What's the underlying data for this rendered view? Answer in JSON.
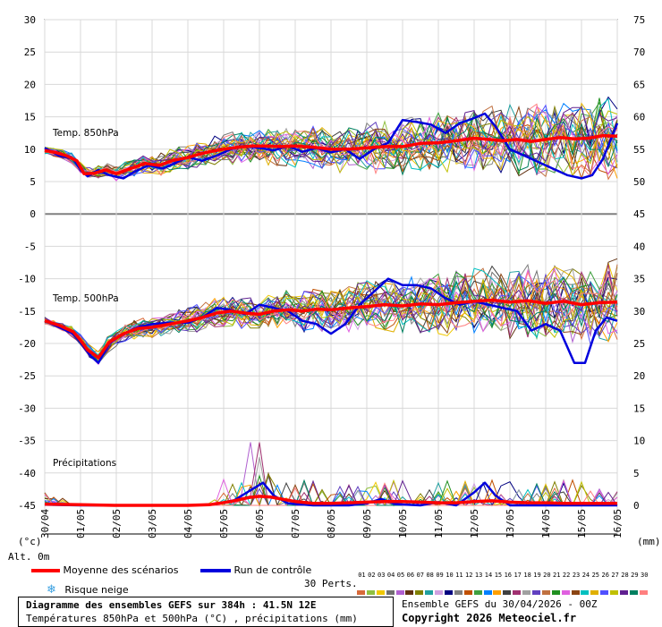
{
  "chart_data": {
    "type": "line",
    "x_labels": [
      "30/04",
      "01/05",
      "02/05",
      "03/05",
      "04/05",
      "05/05",
      "06/05",
      "07/05",
      "08/05",
      "09/05",
      "10/05",
      "11/05",
      "12/05",
      "13/05",
      "14/05",
      "15/05",
      "16/05"
    ],
    "x_range_days": [
      0,
      16
    ],
    "y_left_ticks": [
      30,
      25,
      20,
      15,
      10,
      5,
      0,
      -5,
      -10,
      -15,
      -20,
      -25,
      -30,
      -35,
      -40,
      -45
    ],
    "y_right_ticks": [
      75,
      70,
      65,
      60,
      55,
      50,
      45,
      40,
      35,
      30,
      25,
      20,
      15,
      10,
      5,
      0
    ],
    "panels": {
      "t850": {
        "label": "Temp. 850hPa",
        "ylim": [
          0,
          30
        ],
        "mean": [
          [
            0,
            9.8
          ],
          [
            0.3,
            9.5
          ],
          [
            0.6,
            9.0
          ],
          [
            0.9,
            8.2
          ],
          [
            1.1,
            6.2
          ],
          [
            1.4,
            6.3
          ],
          [
            1.7,
            6.8
          ],
          [
            2.0,
            6.2
          ],
          [
            2.4,
            7.0
          ],
          [
            2.8,
            7.8
          ],
          [
            3.2,
            7.5
          ],
          [
            3.6,
            8.3
          ],
          [
            4.0,
            8.7
          ],
          [
            4.3,
            9.2
          ],
          [
            4.6,
            9.6
          ],
          [
            5.0,
            10.0
          ],
          [
            5.4,
            10.3
          ],
          [
            5.8,
            10.5
          ],
          [
            6.2,
            10.5
          ],
          [
            6.6,
            10.4
          ],
          [
            7.0,
            10.5
          ],
          [
            7.5,
            10.3
          ],
          [
            8.0,
            10.0
          ],
          [
            8.5,
            10.0
          ],
          [
            9.0,
            10.2
          ],
          [
            9.5,
            10.4
          ],
          [
            10.0,
            10.4
          ],
          [
            10.5,
            10.9
          ],
          [
            11.0,
            11.0
          ],
          [
            11.5,
            11.3
          ],
          [
            12.0,
            11.7
          ],
          [
            12.4,
            11.5
          ],
          [
            12.8,
            11.3
          ],
          [
            13.2,
            11.5
          ],
          [
            13.6,
            11.2
          ],
          [
            14.0,
            11.5
          ],
          [
            14.4,
            11.8
          ],
          [
            14.8,
            11.6
          ],
          [
            15.2,
            11.7
          ],
          [
            15.6,
            12.1
          ],
          [
            16.0,
            12.0
          ]
        ],
        "control": [
          [
            0,
            10.2
          ],
          [
            0.4,
            9.0
          ],
          [
            0.8,
            8.5
          ],
          [
            1.0,
            6.8
          ],
          [
            1.2,
            5.8
          ],
          [
            1.5,
            6.8
          ],
          [
            1.8,
            6.0
          ],
          [
            2.2,
            5.5
          ],
          [
            2.5,
            6.5
          ],
          [
            2.9,
            7.5
          ],
          [
            3.3,
            7.0
          ],
          [
            3.7,
            8.0
          ],
          [
            4.0,
            8.8
          ],
          [
            4.4,
            8.2
          ],
          [
            4.8,
            9.0
          ],
          [
            5.2,
            10.0
          ],
          [
            5.6,
            10.5
          ],
          [
            6.0,
            10.2
          ],
          [
            6.4,
            9.8
          ],
          [
            6.8,
            10.5
          ],
          [
            7.2,
            9.6
          ],
          [
            7.6,
            10.2
          ],
          [
            8.0,
            9.5
          ],
          [
            8.4,
            10.0
          ],
          [
            8.8,
            8.5
          ],
          [
            9.2,
            10.0
          ],
          [
            9.6,
            11.0
          ],
          [
            10.0,
            14.5
          ],
          [
            10.4,
            14.2
          ],
          [
            10.8,
            13.8
          ],
          [
            11.2,
            12.5
          ],
          [
            11.6,
            14.0
          ],
          [
            12.0,
            14.8
          ],
          [
            12.3,
            15.5
          ],
          [
            12.6,
            13.5
          ],
          [
            13.0,
            10.0
          ],
          [
            13.4,
            9.0
          ],
          [
            13.8,
            8.0
          ],
          [
            14.2,
            7.0
          ],
          [
            14.6,
            6.0
          ],
          [
            15.0,
            5.5
          ],
          [
            15.3,
            6.0
          ],
          [
            15.6,
            8.5
          ],
          [
            16.0,
            14.0
          ]
        ]
      },
      "t500": {
        "label": "Temp. 500hPa",
        "ylim": [
          -25,
          -5
        ],
        "mean": [
          [
            0,
            -16.5
          ],
          [
            0.4,
            -17.2
          ],
          [
            0.8,
            -18.2
          ],
          [
            1.0,
            -19.5
          ],
          [
            1.2,
            -21.0
          ],
          [
            1.5,
            -22.2
          ],
          [
            1.8,
            -19.8
          ],
          [
            2.2,
            -18.5
          ],
          [
            2.6,
            -17.7
          ],
          [
            3.0,
            -17.5
          ],
          [
            3.5,
            -17.0
          ],
          [
            4.0,
            -16.5
          ],
          [
            4.4,
            -16.0
          ],
          [
            4.8,
            -15.3
          ],
          [
            5.2,
            -15.0
          ],
          [
            5.6,
            -15.3
          ],
          [
            6.0,
            -15.5
          ],
          [
            6.4,
            -15.0
          ],
          [
            6.8,
            -14.8
          ],
          [
            7.2,
            -15.0
          ],
          [
            7.6,
            -14.7
          ],
          [
            8.0,
            -14.8
          ],
          [
            8.5,
            -14.5
          ],
          [
            9.0,
            -14.3
          ],
          [
            9.5,
            -14.0
          ],
          [
            10.0,
            -14.2
          ],
          [
            10.5,
            -13.9
          ],
          [
            11.0,
            -14.0
          ],
          [
            11.5,
            -13.7
          ],
          [
            12.0,
            -13.5
          ],
          [
            12.5,
            -13.3
          ],
          [
            13.0,
            -13.6
          ],
          [
            13.5,
            -13.4
          ],
          [
            14.0,
            -13.8
          ],
          [
            14.5,
            -13.5
          ],
          [
            15.0,
            -14.0
          ],
          [
            15.5,
            -13.7
          ],
          [
            16.0,
            -13.6
          ]
        ],
        "control": [
          [
            0,
            -16.5
          ],
          [
            0.4,
            -17.5
          ],
          [
            0.8,
            -18.5
          ],
          [
            1.0,
            -19.8
          ],
          [
            1.3,
            -22.0
          ],
          [
            1.5,
            -23.0
          ],
          [
            1.8,
            -20.0
          ],
          [
            2.2,
            -18.5
          ],
          [
            2.6,
            -17.5
          ],
          [
            3.0,
            -17.0
          ],
          [
            3.5,
            -16.8
          ],
          [
            4.0,
            -16.8
          ],
          [
            4.4,
            -16.0
          ],
          [
            4.8,
            -14.5
          ],
          [
            5.2,
            -14.8
          ],
          [
            5.6,
            -15.5
          ],
          [
            6.0,
            -14.0
          ],
          [
            6.4,
            -14.5
          ],
          [
            6.8,
            -15.0
          ],
          [
            7.2,
            -16.5
          ],
          [
            7.6,
            -17.0
          ],
          [
            8.0,
            -18.5
          ],
          [
            8.4,
            -17.0
          ],
          [
            8.8,
            -14.0
          ],
          [
            9.2,
            -12.0
          ],
          [
            9.6,
            -10.0
          ],
          [
            10.0,
            -11.0
          ],
          [
            10.4,
            -11.0
          ],
          [
            10.8,
            -11.5
          ],
          [
            11.2,
            -13.0
          ],
          [
            11.6,
            -14.0
          ],
          [
            12.0,
            -13.5
          ],
          [
            12.4,
            -14.0
          ],
          [
            12.8,
            -14.5
          ],
          [
            13.2,
            -15.0
          ],
          [
            13.6,
            -18.0
          ],
          [
            14.0,
            -17.0
          ],
          [
            14.4,
            -18.0
          ],
          [
            14.8,
            -23.0
          ],
          [
            15.1,
            -23.0
          ],
          [
            15.4,
            -18.0
          ],
          [
            15.7,
            -16.0
          ],
          [
            16.0,
            -16.5
          ]
        ]
      },
      "precip": {
        "label": "Précipitations",
        "ylim": [
          0,
          15
        ],
        "mean": [
          [
            0,
            0.2
          ],
          [
            1,
            0.1
          ],
          [
            2,
            0
          ],
          [
            3,
            0
          ],
          [
            4,
            0
          ],
          [
            4.6,
            0.1
          ],
          [
            5.2,
            0.6
          ],
          [
            5.7,
            1.2
          ],
          [
            6.0,
            1.4
          ],
          [
            6.3,
            1.3
          ],
          [
            6.6,
            1.0
          ],
          [
            7.0,
            0.6
          ],
          [
            7.5,
            0.3
          ],
          [
            8.0,
            0.3
          ],
          [
            8.5,
            0.4
          ],
          [
            9.0,
            0.5
          ],
          [
            9.5,
            0.6
          ],
          [
            10,
            0.6
          ],
          [
            10.5,
            0.5
          ],
          [
            11,
            0.4
          ],
          [
            11.5,
            0.4
          ],
          [
            12,
            0.6
          ],
          [
            12.5,
            0.7
          ],
          [
            13,
            0.5
          ],
          [
            13.5,
            0.4
          ],
          [
            14,
            0.4
          ],
          [
            14.5,
            0.3
          ],
          [
            15,
            0.3
          ],
          [
            15.5,
            0.3
          ],
          [
            16,
            0.3
          ]
        ],
        "control": [
          [
            0,
            0.1
          ],
          [
            1,
            0
          ],
          [
            2,
            0
          ],
          [
            3,
            0
          ],
          [
            4,
            0
          ],
          [
            4.8,
            0.2
          ],
          [
            5.3,
            0.8
          ],
          [
            5.8,
            2.5
          ],
          [
            6.1,
            3.5
          ],
          [
            6.4,
            1.5
          ],
          [
            6.8,
            0.3
          ],
          [
            7.5,
            0
          ],
          [
            8.5,
            0
          ],
          [
            9,
            0.3
          ],
          [
            9.4,
            1.0
          ],
          [
            9.8,
            0.2
          ],
          [
            10.5,
            0
          ],
          [
            11,
            0.5
          ],
          [
            11.5,
            0
          ],
          [
            12,
            2.0
          ],
          [
            12.3,
            3.5
          ],
          [
            12.6,
            1.5
          ],
          [
            13,
            0
          ],
          [
            13.5,
            0
          ],
          [
            14,
            0
          ],
          [
            15,
            0
          ],
          [
            16,
            0
          ]
        ]
      }
    }
  },
  "axis_unit_left": "(°c)",
  "axis_unit_right": "(mm)",
  "alt_label": "Alt. 0m",
  "legend": {
    "mean_label": "Moyenne des scénarios",
    "mean_color": "#ff0000",
    "control_label": "Run de contrôle",
    "control_color": "#0000dd",
    "snow_label": "Risque neige",
    "perts_label": "30 Perts.",
    "pert_numbers": [
      "01",
      "02",
      "03",
      "04",
      "05",
      "06",
      "07",
      "08",
      "09",
      "10",
      "11",
      "12",
      "13",
      "14",
      "15",
      "16",
      "17",
      "18",
      "19",
      "20",
      "21",
      "22",
      "23",
      "24",
      "25",
      "26",
      "27",
      "28",
      "29",
      "30"
    ],
    "pert_colors": [
      "#d86a3a",
      "#90c040",
      "#f0c800",
      "#707070",
      "#b060d0",
      "#603010",
      "#808000",
      "#20a0a0",
      "#d0a0e0",
      "#000080",
      "#808080",
      "#c05000",
      "#40a040",
      "#0080ff",
      "#ffa000",
      "#404040",
      "#a03070",
      "#a0a0a0",
      "#6040c0",
      "#c07040",
      "#209020",
      "#e060e0",
      "#8b4513",
      "#00c0c0",
      "#e0b000",
      "#5050ff",
      "#c0c000",
      "#602090",
      "#008060",
      "#ff8080"
    ]
  },
  "info": {
    "title_line1": "Diagramme des ensembles GEFS sur 384h : 41.5N 12E",
    "title_line2": "Températures 850hPa et 500hPa (°C) , précipitations (mm)",
    "run_line": "Ensemble GEFS du 30/04/2026 - 00Z",
    "copyright": "Copyright 2026 Meteociel.fr"
  }
}
